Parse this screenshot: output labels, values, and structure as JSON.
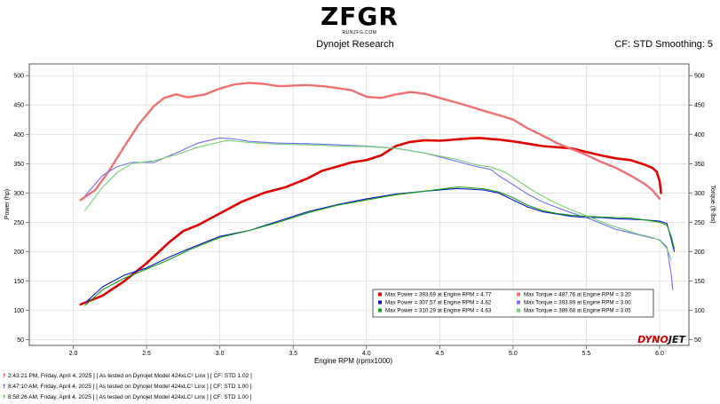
{
  "header": {
    "logo_text": "ZFGR",
    "logo_subtext": "RUNZFG.COM",
    "maker": "Dynojet Research",
    "cf_info": "CF: STD Smoothing: 5"
  },
  "brand": {
    "text": "DYNOJET",
    "colors": {
      "dyno": "#cc0000",
      "jet": "#111111"
    }
  },
  "runs": [
    {
      "pin_color": "#e00000",
      "label": "2:43:21 PM, Friday, April 4, 2025 ] [ As tested on Dynojet Model 424xLC² Linx ] [ CF: STD 1.02 ]"
    },
    {
      "pin_color": "#1010e0",
      "label": "8:47:10 AM, Friday, April 4, 2025 ] [ As tested on Dynojet Model 424xLC² Linx ] [ CF: STD 1.00 ]"
    },
    {
      "pin_color": "#10b010",
      "label": "8:58:26 AM, Friday, April 4, 2025 ] [ As tested on Dynojet Model 424xLC² Linx ] [ CF: STD 1.00 ]"
    }
  ],
  "chart_data": {
    "type": "line",
    "xlabel": "Engine RPM (rpmx1000)",
    "ylabel_left": "Power (hp)",
    "ylabel_right": "Torque (ft-lbs)",
    "xlim": [
      1.7,
      6.2
    ],
    "ylim": [
      40,
      520
    ],
    "x_ticks": [
      "2.0",
      "2.5",
      "3.0",
      "3.5",
      "4.0",
      "4.5",
      "5.0",
      "5.5",
      "6.0"
    ],
    "y_ticks": [
      "50",
      "100",
      "150",
      "200",
      "250",
      "300",
      "350",
      "400",
      "450",
      "500"
    ],
    "grid": true,
    "legend_position": "bottom-right",
    "legend": [
      {
        "power_label": "Max Power = 393.69 at Engine RPM = 4.77",
        "torque_label": "Max Torque = 487.76 at Engine RPM = 3.20",
        "power_color": "#e00000",
        "torque_color": "#f07070"
      },
      {
        "power_label": "Max Power = 307.57 at Engine RPM = 4.62",
        "torque_label": "Max Torque = 393.89 at Engine RPM = 3.00",
        "power_color": "#1010d0",
        "torque_color": "#7070f0"
      },
      {
        "power_label": "Max Power = 310.29 at Engine RPM = 4.63",
        "torque_label": "Max Torque = 389.68 at Engine RPM = 3.05",
        "power_color": "#10a010",
        "torque_color": "#70d070"
      }
    ],
    "series": [
      {
        "color": "#e00000",
        "width": 2.6,
        "points": [
          [
            2.05,
            110
          ],
          [
            2.2,
            125
          ],
          [
            2.35,
            150
          ],
          [
            2.5,
            180
          ],
          [
            2.65,
            215
          ],
          [
            2.75,
            235
          ],
          [
            2.85,
            245
          ],
          [
            3.0,
            265
          ],
          [
            3.15,
            285
          ],
          [
            3.3,
            300
          ],
          [
            3.45,
            310
          ],
          [
            3.6,
            325
          ],
          [
            3.7,
            338
          ],
          [
            3.8,
            345
          ],
          [
            3.9,
            352
          ],
          [
            4.0,
            356
          ],
          [
            4.1,
            364
          ],
          [
            4.2,
            380
          ],
          [
            4.3,
            387
          ],
          [
            4.4,
            390
          ],
          [
            4.5,
            389
          ],
          [
            4.6,
            391
          ],
          [
            4.7,
            393
          ],
          [
            4.77,
            393.7
          ],
          [
            4.9,
            391
          ],
          [
            5.0,
            388
          ],
          [
            5.1,
            384
          ],
          [
            5.2,
            380
          ],
          [
            5.3,
            378
          ],
          [
            5.4,
            376
          ],
          [
            5.5,
            370
          ],
          [
            5.6,
            364
          ],
          [
            5.7,
            359
          ],
          [
            5.8,
            356
          ],
          [
            5.85,
            352
          ],
          [
            5.9,
            348
          ],
          [
            5.95,
            343
          ],
          [
            5.98,
            336
          ],
          [
            6.0,
            320
          ],
          [
            6.01,
            300
          ]
        ]
      },
      {
        "color": "#f07070",
        "width": 2.4,
        "points": [
          [
            2.05,
            288
          ],
          [
            2.15,
            305
          ],
          [
            2.25,
            340
          ],
          [
            2.35,
            380
          ],
          [
            2.45,
            418
          ],
          [
            2.55,
            448
          ],
          [
            2.62,
            462
          ],
          [
            2.7,
            468
          ],
          [
            2.78,
            463
          ],
          [
            2.9,
            468
          ],
          [
            3.0,
            478
          ],
          [
            3.1,
            485
          ],
          [
            3.2,
            487.8
          ],
          [
            3.3,
            486
          ],
          [
            3.4,
            482
          ],
          [
            3.5,
            483
          ],
          [
            3.6,
            484
          ],
          [
            3.7,
            482
          ],
          [
            3.8,
            479
          ],
          [
            3.9,
            475
          ],
          [
            4.0,
            464
          ],
          [
            4.1,
            462
          ],
          [
            4.2,
            468
          ],
          [
            4.3,
            472
          ],
          [
            4.4,
            469
          ],
          [
            4.5,
            462
          ],
          [
            4.6,
            455
          ],
          [
            4.7,
            448
          ],
          [
            4.8,
            440
          ],
          [
            4.9,
            433
          ],
          [
            5.0,
            425
          ],
          [
            5.1,
            410
          ],
          [
            5.2,
            398
          ],
          [
            5.3,
            385
          ],
          [
            5.4,
            375
          ],
          [
            5.5,
            365
          ],
          [
            5.6,
            353
          ],
          [
            5.7,
            343
          ],
          [
            5.8,
            330
          ],
          [
            5.9,
            315
          ],
          [
            5.95,
            305
          ],
          [
            6.0,
            290
          ]
        ]
      },
      {
        "color": "#1010d0",
        "width": 1.1,
        "points": [
          [
            2.08,
            112
          ],
          [
            2.2,
            140
          ],
          [
            2.35,
            160
          ],
          [
            2.5,
            172
          ],
          [
            2.65,
            190
          ],
          [
            2.8,
            206
          ],
          [
            3.0,
            226
          ],
          [
            3.2,
            236
          ],
          [
            3.4,
            252
          ],
          [
            3.6,
            268
          ],
          [
            3.8,
            280
          ],
          [
            4.0,
            290
          ],
          [
            4.2,
            298
          ],
          [
            4.4,
            303
          ],
          [
            4.62,
            307.6
          ],
          [
            4.8,
            305
          ],
          [
            4.9,
            300
          ],
          [
            5.0,
            288
          ],
          [
            5.1,
            276
          ],
          [
            5.2,
            268
          ],
          [
            5.3,
            264
          ],
          [
            5.4,
            260
          ],
          [
            5.5,
            258
          ],
          [
            5.6,
            258
          ],
          [
            5.7,
            256
          ],
          [
            5.8,
            255
          ],
          [
            5.9,
            254
          ],
          [
            6.0,
            252
          ],
          [
            6.05,
            248
          ],
          [
            6.08,
            220
          ],
          [
            6.1,
            200
          ]
        ]
      },
      {
        "color": "#7070f0",
        "width": 1.1,
        "points": [
          [
            2.08,
            295
          ],
          [
            2.2,
            330
          ],
          [
            2.3,
            345
          ],
          [
            2.4,
            352
          ],
          [
            2.55,
            352
          ],
          [
            2.7,
            368
          ],
          [
            2.85,
            385
          ],
          [
            3.0,
            393.9
          ],
          [
            3.1,
            392
          ],
          [
            3.2,
            388
          ],
          [
            3.4,
            385
          ],
          [
            3.6,
            384
          ],
          [
            3.8,
            382
          ],
          [
            4.0,
            380
          ],
          [
            4.2,
            376
          ],
          [
            4.4,
            368
          ],
          [
            4.6,
            355
          ],
          [
            4.75,
            345
          ],
          [
            4.85,
            340
          ],
          [
            4.9,
            330
          ],
          [
            5.0,
            314
          ],
          [
            5.1,
            298
          ],
          [
            5.2,
            285
          ],
          [
            5.3,
            275
          ],
          [
            5.4,
            266
          ],
          [
            5.5,
            258
          ],
          [
            5.6,
            248
          ],
          [
            5.7,
            238
          ],
          [
            5.8,
            232
          ],
          [
            5.9,
            226
          ],
          [
            6.0,
            220
          ],
          [
            6.05,
            208
          ],
          [
            6.08,
            160
          ],
          [
            6.09,
            135
          ]
        ]
      },
      {
        "color": "#10a010",
        "width": 1.1,
        "points": [
          [
            2.08,
            108
          ],
          [
            2.2,
            135
          ],
          [
            2.35,
            155
          ],
          [
            2.5,
            170
          ],
          [
            2.65,
            186
          ],
          [
            2.8,
            204
          ],
          [
            3.0,
            224
          ],
          [
            3.2,
            236
          ],
          [
            3.4,
            250
          ],
          [
            3.6,
            266
          ],
          [
            3.8,
            279
          ],
          [
            4.0,
            288
          ],
          [
            4.2,
            297
          ],
          [
            4.4,
            303
          ],
          [
            4.63,
            310.3
          ],
          [
            4.8,
            307
          ],
          [
            4.9,
            302
          ],
          [
            5.0,
            292
          ],
          [
            5.1,
            279
          ],
          [
            5.2,
            270
          ],
          [
            5.3,
            265
          ],
          [
            5.4,
            262
          ],
          [
            5.5,
            260
          ],
          [
            5.6,
            259
          ],
          [
            5.7,
            258
          ],
          [
            5.8,
            257
          ],
          [
            5.9,
            254
          ],
          [
            6.0,
            250
          ],
          [
            6.05,
            245
          ],
          [
            6.08,
            225
          ],
          [
            6.1,
            205
          ]
        ]
      },
      {
        "color": "#70d070",
        "width": 1.1,
        "points": [
          [
            2.08,
            270
          ],
          [
            2.2,
            310
          ],
          [
            2.3,
            335
          ],
          [
            2.4,
            350
          ],
          [
            2.55,
            355
          ],
          [
            2.7,
            365
          ],
          [
            2.85,
            378
          ],
          [
            3.05,
            389.7
          ],
          [
            3.2,
            386
          ],
          [
            3.4,
            383
          ],
          [
            3.6,
            382
          ],
          [
            3.8,
            380
          ],
          [
            4.0,
            379
          ],
          [
            4.2,
            376
          ],
          [
            4.4,
            368
          ],
          [
            4.6,
            358
          ],
          [
            4.75,
            348
          ],
          [
            4.85,
            344
          ],
          [
            4.95,
            335
          ],
          [
            5.05,
            318
          ],
          [
            5.15,
            302
          ],
          [
            5.25,
            288
          ],
          [
            5.35,
            276
          ],
          [
            5.45,
            266
          ],
          [
            5.55,
            256
          ],
          [
            5.65,
            246
          ],
          [
            5.75,
            238
          ],
          [
            5.85,
            230
          ],
          [
            5.95,
            224
          ],
          [
            6.0,
            219
          ],
          [
            6.05,
            205
          ],
          [
            6.08,
            185
          ]
        ]
      }
    ]
  }
}
